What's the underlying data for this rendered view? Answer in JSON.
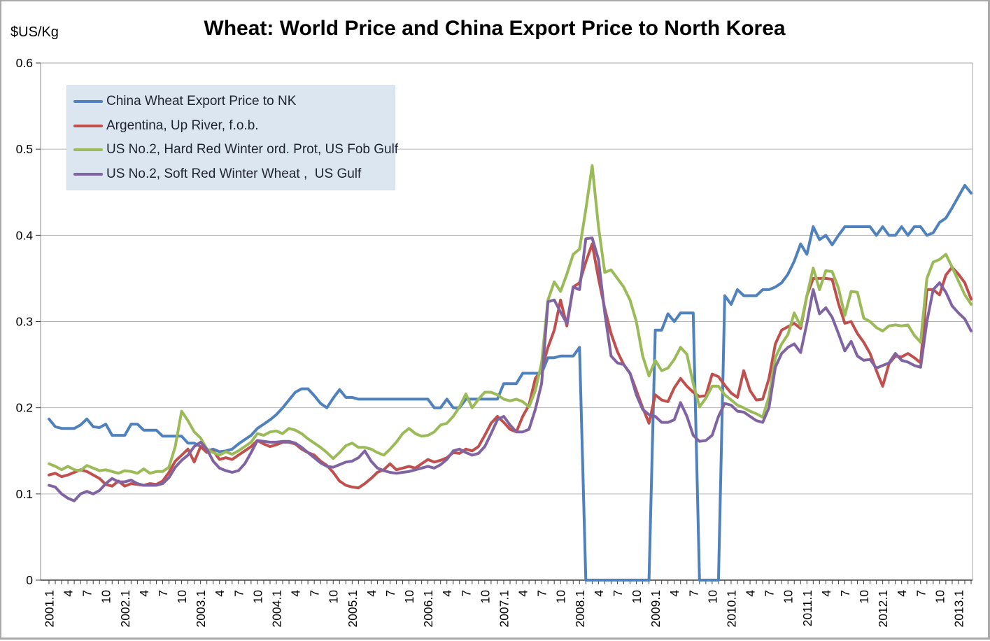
{
  "chart_data": {
    "type": "line",
    "title": "Wheat: World Price and China Export Price to North Korea",
    "ylabel": "$US/Kg",
    "xlabel": "",
    "ylim": [
      0,
      0.6
    ],
    "yticks": [
      0,
      0.1,
      0.2,
      0.3,
      0.4,
      0.5,
      0.6
    ],
    "grid": "horizontal",
    "legend_position": "top-left",
    "x_range": "2001.1 to 2013.3, monthly points, labels every 3rd month",
    "xlabels": [
      "2001.1",
      "4",
      "7",
      "10",
      "2002.1",
      "4",
      "7",
      "10",
      "2003.1",
      "4",
      "7",
      "10",
      "2004.1",
      "4",
      "7",
      "10",
      "2005.1",
      "4",
      "7",
      "10",
      "2006.1",
      "4",
      "7",
      "10",
      "2007.1",
      "4",
      "7",
      "10",
      "2008.1",
      "4",
      "7",
      "10",
      "2009.1",
      "4",
      "7",
      "10",
      "2010.1",
      "4",
      "7",
      "10",
      "2011.1",
      "4",
      "7",
      "10",
      "2012.1",
      "4",
      "7",
      "10",
      "2013.1"
    ],
    "series": [
      {
        "name": "China Wheat Export Price to NK",
        "color": "#4F81BD",
        "values": [
          0.187,
          0.178,
          0.176,
          0.176,
          0.176,
          0.18,
          0.187,
          0.178,
          0.177,
          0.181,
          0.168,
          0.168,
          0.168,
          0.181,
          0.181,
          0.174,
          0.174,
          0.174,
          0.167,
          0.167,
          0.167,
          0.167,
          0.159,
          0.159,
          0.155,
          0.15,
          0.152,
          0.149,
          0.15,
          0.152,
          0.158,
          0.163,
          0.168,
          0.176,
          0.181,
          0.186,
          0.192,
          0.2,
          0.209,
          0.218,
          0.222,
          0.222,
          0.214,
          0.205,
          0.2,
          0.211,
          0.221,
          0.212,
          0.212,
          0.21,
          0.21,
          0.21,
          0.21,
          0.21,
          0.21,
          0.21,
          0.21,
          0.21,
          0.21,
          0.21,
          0.21,
          0.2,
          0.2,
          0.21,
          0.2,
          0.2,
          0.21,
          0.21,
          0.21,
          0.21,
          0.21,
          0.21,
          0.228,
          0.228,
          0.228,
          0.24,
          0.24,
          0.24,
          0.24,
          0.258,
          0.258,
          0.26,
          0.26,
          0.26,
          0.27,
          0,
          0,
          0,
          0,
          0,
          0,
          0,
          0,
          0,
          0,
          0,
          0.29,
          0.29,
          0.309,
          0.3,
          0.31,
          0.31,
          0.31,
          0,
          0,
          0,
          0,
          0.33,
          0.32,
          0.337,
          0.33,
          0.33,
          0.33,
          0.337,
          0.337,
          0.34,
          0.345,
          0.355,
          0.37,
          0.39,
          0.378,
          0.41,
          0.395,
          0.4,
          0.389,
          0.4,
          0.41,
          0.41,
          0.41,
          0.41,
          0.41,
          0.4,
          0.41,
          0.4,
          0.4,
          0.41,
          0.4,
          0.41,
          0.41,
          0.4,
          0.403,
          0.415,
          0.42,
          0.432,
          0.445,
          0.458,
          0.449
        ]
      },
      {
        "name": "Argentina, Up River, f.o.b.",
        "color": "#C0504D",
        "values": [
          0.122,
          0.124,
          0.12,
          0.122,
          0.125,
          0.128,
          0.126,
          0.122,
          0.118,
          0.111,
          0.109,
          0.115,
          0.109,
          0.112,
          0.111,
          0.11,
          0.112,
          0.111,
          0.115,
          0.125,
          0.138,
          0.145,
          0.152,
          0.137,
          0.155,
          0.148,
          0.15,
          0.14,
          0.142,
          0.14,
          0.145,
          0.15,
          0.155,
          0.162,
          0.158,
          0.155,
          0.157,
          0.16,
          0.16,
          0.158,
          0.152,
          0.148,
          0.145,
          0.138,
          0.133,
          0.125,
          0.115,
          0.11,
          0.108,
          0.107,
          0.112,
          0.118,
          0.125,
          0.128,
          0.135,
          0.128,
          0.13,
          0.132,
          0.13,
          0.135,
          0.14,
          0.137,
          0.139,
          0.142,
          0.148,
          0.147,
          0.152,
          0.15,
          0.155,
          0.168,
          0.182,
          0.19,
          0.183,
          0.175,
          0.172,
          0.19,
          0.203,
          0.234,
          0.244,
          0.27,
          0.29,
          0.325,
          0.295,
          0.34,
          0.345,
          0.369,
          0.39,
          0.35,
          0.315,
          0.286,
          0.265,
          0.25,
          0.24,
          0.22,
          0.2,
          0.182,
          0.215,
          0.209,
          0.207,
          0.223,
          0.234,
          0.225,
          0.218,
          0.213,
          0.214,
          0.239,
          0.236,
          0.226,
          0.217,
          0.212,
          0.243,
          0.22,
          0.209,
          0.21,
          0.234,
          0.274,
          0.29,
          0.294,
          0.298,
          0.292,
          0.33,
          0.35,
          0.35,
          0.35,
          0.349,
          0.321,
          0.298,
          0.3,
          0.286,
          0.276,
          0.263,
          0.243,
          0.225,
          0.251,
          0.26,
          0.259,
          0.263,
          0.258,
          0.252,
          0.337,
          0.337,
          0.331,
          0.354,
          0.363,
          0.355,
          0.345,
          0.326
        ]
      },
      {
        "name": "US No.2, Hard Red Winter ord. Prot, US Fob Gulf",
        "color": "#9BBB59",
        "values": [
          0.135,
          0.132,
          0.128,
          0.132,
          0.128,
          0.127,
          0.133,
          0.13,
          0.127,
          0.128,
          0.126,
          0.124,
          0.127,
          0.126,
          0.124,
          0.129,
          0.124,
          0.126,
          0.126,
          0.131,
          0.155,
          0.196,
          0.185,
          0.172,
          0.165,
          0.152,
          0.148,
          0.145,
          0.149,
          0.146,
          0.15,
          0.155,
          0.16,
          0.17,
          0.168,
          0.172,
          0.173,
          0.17,
          0.176,
          0.174,
          0.17,
          0.164,
          0.159,
          0.154,
          0.148,
          0.141,
          0.148,
          0.156,
          0.159,
          0.154,
          0.154,
          0.152,
          0.148,
          0.145,
          0.152,
          0.16,
          0.17,
          0.176,
          0.17,
          0.167,
          0.168,
          0.172,
          0.18,
          0.182,
          0.19,
          0.201,
          0.216,
          0.2,
          0.21,
          0.218,
          0.218,
          0.215,
          0.21,
          0.208,
          0.21,
          0.207,
          0.201,
          0.22,
          0.252,
          0.325,
          0.346,
          0.335,
          0.355,
          0.378,
          0.384,
          0.43,
          0.481,
          0.41,
          0.357,
          0.36,
          0.35,
          0.34,
          0.325,
          0.3,
          0.26,
          0.237,
          0.255,
          0.243,
          0.246,
          0.256,
          0.27,
          0.262,
          0.228,
          0.201,
          0.211,
          0.225,
          0.225,
          0.215,
          0.209,
          0.203,
          0.2,
          0.196,
          0.193,
          0.189,
          0.213,
          0.258,
          0.274,
          0.285,
          0.31,
          0.295,
          0.33,
          0.362,
          0.337,
          0.359,
          0.358,
          0.339,
          0.307,
          0.335,
          0.334,
          0.304,
          0.3,
          0.293,
          0.289,
          0.295,
          0.296,
          0.295,
          0.296,
          0.284,
          0.276,
          0.35,
          0.369,
          0.372,
          0.378,
          0.363,
          0.347,
          0.331,
          0.32
        ]
      },
      {
        "name": "US No.2, Soft Red Winter Wheat ,  US Gulf",
        "color": "#8064A2",
        "values": [
          0.11,
          0.108,
          0.1,
          0.095,
          0.092,
          0.1,
          0.103,
          0.1,
          0.104,
          0.112,
          0.118,
          0.114,
          0.114,
          0.116,
          0.112,
          0.11,
          0.11,
          0.11,
          0.112,
          0.119,
          0.131,
          0.139,
          0.145,
          0.155,
          0.16,
          0.152,
          0.138,
          0.13,
          0.127,
          0.125,
          0.127,
          0.135,
          0.148,
          0.162,
          0.161,
          0.16,
          0.16,
          0.161,
          0.161,
          0.159,
          0.154,
          0.148,
          0.142,
          0.136,
          0.132,
          0.131,
          0.134,
          0.137,
          0.138,
          0.142,
          0.15,
          0.138,
          0.13,
          0.127,
          0.125,
          0.124,
          0.125,
          0.126,
          0.128,
          0.13,
          0.132,
          0.13,
          0.134,
          0.14,
          0.15,
          0.152,
          0.148,
          0.145,
          0.147,
          0.155,
          0.17,
          0.186,
          0.19,
          0.18,
          0.172,
          0.172,
          0.175,
          0.198,
          0.228,
          0.323,
          0.325,
          0.311,
          0.298,
          0.34,
          0.337,
          0.396,
          0.397,
          0.372,
          0.31,
          0.26,
          0.252,
          0.25,
          0.24,
          0.215,
          0.198,
          0.192,
          0.19,
          0.183,
          0.183,
          0.186,
          0.206,
          0.19,
          0.168,
          0.161,
          0.162,
          0.168,
          0.19,
          0.205,
          0.203,
          0.196,
          0.195,
          0.19,
          0.185,
          0.183,
          0.2,
          0.247,
          0.263,
          0.27,
          0.274,
          0.264,
          0.298,
          0.337,
          0.309,
          0.316,
          0.305,
          0.286,
          0.266,
          0.277,
          0.26,
          0.255,
          0.256,
          0.246,
          0.249,
          0.252,
          0.263,
          0.255,
          0.253,
          0.249,
          0.247,
          0.3,
          0.337,
          0.345,
          0.334,
          0.318,
          0.31,
          0.303,
          0.289
        ]
      }
    ],
    "colors": {
      "legend_background": "#DCE6F1",
      "gridline": "#B6B6B6",
      "plot_border": "#A6A6A6",
      "axis": "#3F3F3F",
      "text": "#000000"
    }
  }
}
